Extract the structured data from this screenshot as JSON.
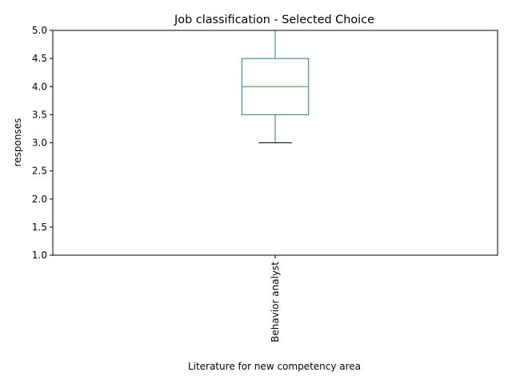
{
  "chart_data": {
    "type": "box",
    "title": "Job classification - Selected Choice",
    "xlabel": "Literature for new competency area",
    "ylabel": "responses",
    "ylim": [
      1.0,
      5.0
    ],
    "yticks": [
      "1.0",
      "1.5",
      "2.0",
      "2.5",
      "3.0",
      "3.5",
      "4.0",
      "4.5",
      "5.0"
    ],
    "categories": [
      "Behavior analyst"
    ],
    "boxes": [
      {
        "category": "Behavior analyst",
        "whisker_low": 3.0,
        "q1": 3.5,
        "median": 4.0,
        "q3": 4.5,
        "whisker_high": 5.0
      }
    ],
    "grid": false,
    "colors": {
      "box": "#1f77b4",
      "median": "#2ca02c",
      "cap": "#000000",
      "axes": "#000000"
    }
  }
}
